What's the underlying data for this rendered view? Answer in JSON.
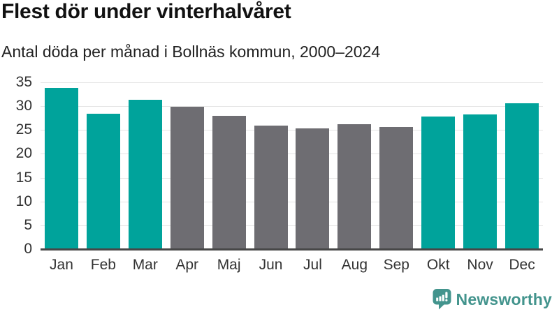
{
  "header": {
    "title": "Flest dör under vinterhalvåret",
    "subtitle": "Antal döda per månad i Bollnäs kommun, 2000–2024"
  },
  "chart_data": {
    "type": "bar",
    "title": "Flest dör under vinterhalvåret",
    "subtitle": "Antal döda per månad i Bollnäs kommun, 2000–2024",
    "categories": [
      "Jan",
      "Feb",
      "Mar",
      "Apr",
      "Maj",
      "Jun",
      "Jul",
      "Aug",
      "Sep",
      "Okt",
      "Nov",
      "Dec"
    ],
    "values": [
      33.9,
      28.4,
      31.4,
      29.9,
      28.0,
      25.9,
      25.4,
      26.2,
      25.7,
      27.8,
      28.2,
      30.6
    ],
    "bar_groups": [
      "winter",
      "winter",
      "winter",
      "summer",
      "summer",
      "summer",
      "summer",
      "summer",
      "summer",
      "winter",
      "winter",
      "winter"
    ],
    "group_colors": {
      "winter": "#00a39b",
      "summer": "#6e6d72"
    },
    "xlabel": "",
    "ylabel": "",
    "ylim": [
      0,
      35
    ],
    "yticks": [
      0,
      5,
      10,
      15,
      20,
      25,
      30,
      35
    ],
    "grid": true,
    "legend": false,
    "gridline_color": "#e4e4e4",
    "axis_color": "#474747"
  },
  "footer": {
    "brand": "Newsworthy",
    "brand_color": "#43948d",
    "logo_icon": "newsworthy-speech-bubble-bar-chart-icon"
  }
}
